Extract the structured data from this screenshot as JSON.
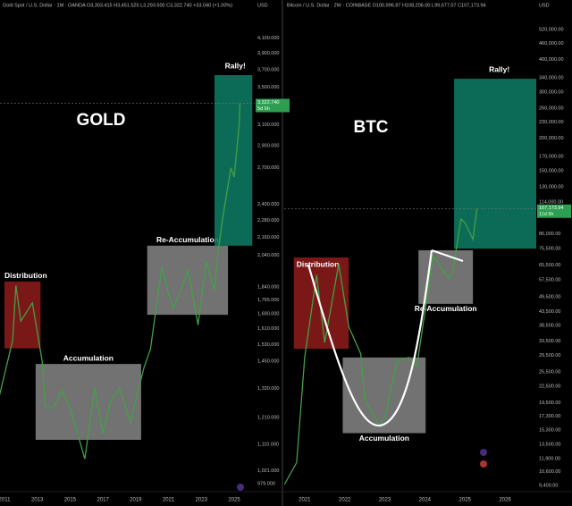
{
  "chart_data": [
    {
      "type": "line",
      "header": "Gold Spot / U.S. Dollar · 1M · OANDA  O3,303.415 H3,451.525 L3,293.500 C3,322.740 +33.040 (+1.00%)",
      "unit": "USD",
      "annotation": "GOLD",
      "log_scale": true,
      "grid": false,
      "color": "#43a047",
      "x": [
        2010.7,
        2011.5,
        2011.7,
        2012.0,
        2012.7,
        2013.3,
        2013.5,
        2014.0,
        2014.5,
        2015.0,
        2015.9,
        2016.5,
        2017.0,
        2017.5,
        2018.0,
        2018.7,
        2019.0,
        2019.5,
        2019.9,
        2020.6,
        2021.0,
        2021.3,
        2022.2,
        2022.8,
        2023.3,
        2023.8,
        2024.0,
        2024.3,
        2024.8,
        2025.0,
        2025.3,
        2025.35
      ],
      "values": [
        1300,
        1550,
        1850,
        1650,
        1750,
        1450,
        1250,
        1250,
        1320,
        1250,
        1060,
        1330,
        1150,
        1280,
        1330,
        1190,
        1280,
        1420,
        1510,
        1970,
        1800,
        1720,
        1940,
        1630,
        2000,
        1820,
        2050,
        2300,
        2700,
        2620,
        3100,
        3322.74
      ],
      "xlim": [
        2010.73,
        2026.25
      ],
      "xticks": [
        2011,
        2013,
        2015,
        2017,
        2019,
        2021,
        2023,
        2025
      ],
      "ylim": [
        954,
        4630
      ],
      "yticks": [
        {
          "value": 4100,
          "label": "4,100.000"
        },
        {
          "value": 3900,
          "label": "3,900.000"
        },
        {
          "value": 3700,
          "label": "3,700.000"
        },
        {
          "value": 3500,
          "label": "3,500.000"
        },
        {
          "value": 3100,
          "label": "3,100.000"
        },
        {
          "value": 2900,
          "label": "2,900.000"
        },
        {
          "value": 2700,
          "label": "2,700.000"
        },
        {
          "value": 2400,
          "label": "2,400.000"
        },
        {
          "value": 2280,
          "label": "2,280.000"
        },
        {
          "value": 2160,
          "label": "2,160.000"
        },
        {
          "value": 2040,
          "label": "2,040.000"
        },
        {
          "value": 1840,
          "label": "1,840.000"
        },
        {
          "value": 1765,
          "label": "1,765.000"
        },
        {
          "value": 1690,
          "label": "1,690.000"
        },
        {
          "value": 1610,
          "label": "1,610.000"
        },
        {
          "value": 1530,
          "label": "1,530.000"
        },
        {
          "value": 1450,
          "label": "1,450.000"
        },
        {
          "value": 1330,
          "label": "1,330.000"
        },
        {
          "value": 1210,
          "label": "1,210.000"
        },
        {
          "value": 1110,
          "label": "1,110.000"
        },
        {
          "value": 1021,
          "label": "1,021.000"
        },
        {
          "value": 979,
          "label": "979.000"
        }
      ],
      "price_tag": {
        "value": 3322.74,
        "label": "3,322.740",
        "countdown": "5d 6h"
      },
      "regions": [
        {
          "label": "Distribution",
          "x": [
            2011.0,
            2013.2
          ],
          "y": [
            1512,
            1874
          ],
          "color": "#8b1a1a",
          "label_position": "above-left"
        },
        {
          "label": "Accumulation",
          "x": [
            2012.9,
            2019.33
          ],
          "y": [
            1127,
            1438
          ],
          "color": "#9e9e9e",
          "label_position": "above"
        },
        {
          "label": "Re-Accumulation",
          "x": [
            2019.7,
            2024.62
          ],
          "y": [
            1684,
            2103
          ],
          "color": "#9e9e9e",
          "label_position": "above"
        },
        {
          "label": "Rally!",
          "x": [
            2023.8,
            2026.1
          ],
          "y": [
            2103,
            3637
          ],
          "color": "#0e7a62",
          "label_position": "above"
        }
      ]
    },
    {
      "type": "line",
      "header": "Bitcoin / U.S. Dollar · 2W · COINBASE  O100,996.87 H108,206.00 L99,677.07 C107,173.94",
      "unit": "USD",
      "annotation": "BTC",
      "log_scale": true,
      "grid": false,
      "color": "#43a047",
      "x": [
        2020.5,
        2020.8,
        2021.0,
        2021.3,
        2021.5,
        2021.85,
        2022.1,
        2022.4,
        2022.5,
        2022.85,
        2023.0,
        2023.3,
        2023.6,
        2023.8,
        2024.0,
        2024.2,
        2024.6,
        2024.7,
        2024.9,
        2025.0,
        2025.2,
        2025.3
      ],
      "values": [
        9500,
        11500,
        29000,
        60000,
        33000,
        66000,
        38000,
        30000,
        20000,
        16000,
        17000,
        28000,
        29000,
        27000,
        43000,
        71000,
        58000,
        62000,
        98000,
        95000,
        82000,
        107173.94
      ],
      "xlim": [
        2020.49,
        2026.78
      ],
      "xticks": [
        2021,
        2022,
        2023,
        2024,
        2025,
        2026
      ],
      "ylim": [
        8900,
        674000
      ],
      "yticks": [
        {
          "value": 520000,
          "label": "520,000.00"
        },
        {
          "value": 460000,
          "label": "460,000.00"
        },
        {
          "value": 400000,
          "label": "400,000.00"
        },
        {
          "value": 340000,
          "label": "340,000.00"
        },
        {
          "value": 300000,
          "label": "300,000.00"
        },
        {
          "value": 260000,
          "label": "260,000.00"
        },
        {
          "value": 230000,
          "label": "230,000.00"
        },
        {
          "value": 200000,
          "label": "200,000.00"
        },
        {
          "value": 170000,
          "label": "170,000.00"
        },
        {
          "value": 150000,
          "label": "150,000.00"
        },
        {
          "value": 130000,
          "label": "130,000.00"
        },
        {
          "value": 114000,
          "label": "114,000.00"
        },
        {
          "value": 86000,
          "label": "86,000.00"
        },
        {
          "value": 75500,
          "label": "75,500.00"
        },
        {
          "value": 65500,
          "label": "65,500.00"
        },
        {
          "value": 57500,
          "label": "57,500.00"
        },
        {
          "value": 49500,
          "label": "49,500.00"
        },
        {
          "value": 43500,
          "label": "43,500.00"
        },
        {
          "value": 38500,
          "label": "38,500.00"
        },
        {
          "value": 33500,
          "label": "33,500.00"
        },
        {
          "value": 29500,
          "label": "29,500.00"
        },
        {
          "value": 25500,
          "label": "25,500.00"
        },
        {
          "value": 22500,
          "label": "22,500.00"
        },
        {
          "value": 19500,
          "label": "19,500.00"
        },
        {
          "value": 17300,
          "label": "17,300.00"
        },
        {
          "value": 15300,
          "label": "15,300.00"
        },
        {
          "value": 13500,
          "label": "13,500.00"
        },
        {
          "value": 11900,
          "label": "11,900.00"
        },
        {
          "value": 10600,
          "label": "10,600.00"
        },
        {
          "value": 9400,
          "label": "9,400.00"
        }
      ],
      "price_tag": {
        "value": 107173.94,
        "label": "107,173.94",
        "countdown": "11d 9h"
      },
      "regions": [
        {
          "label": "Distribution",
          "x": [
            2020.73,
            2022.1
          ],
          "y": [
            31300,
            69900
          ],
          "color": "#8b1a1a",
          "label_position": "inside"
        },
        {
          "label": "Accumulation",
          "x": [
            2021.95,
            2024.02
          ],
          "y": [
            14900,
            29000
          ],
          "color": "#9e9e9e",
          "label_position": "below"
        },
        {
          "label": "Re-Accumulation",
          "x": [
            2023.84,
            2025.2
          ],
          "y": [
            46500,
            74500
          ],
          "color": "#9e9e9e",
          "label_position": "below"
        },
        {
          "label": "Rally!",
          "x": [
            2024.73,
            2026.78
          ],
          "y": [
            75600,
            337000
          ],
          "color": "#0e7a62",
          "label_position": "above"
        }
      ]
    }
  ]
}
